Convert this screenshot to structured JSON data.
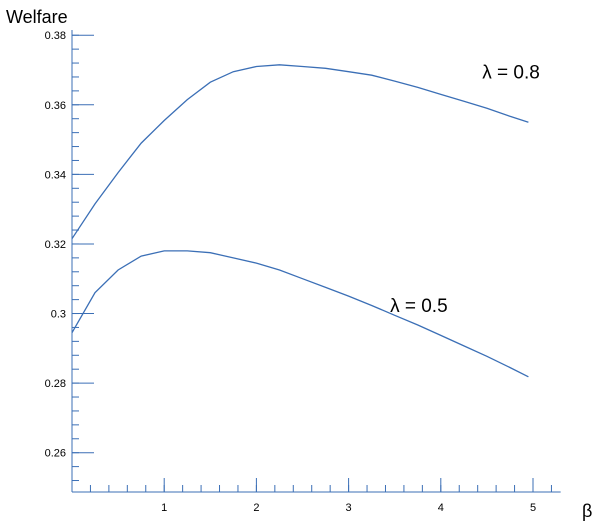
{
  "chart_data": {
    "type": "line",
    "ylabel": "Welfare",
    "xlabel": "β",
    "xlim": [
      0,
      5.3
    ],
    "ylim": [
      0.2487,
      0.3815
    ],
    "x_ticks": [
      1,
      2,
      3,
      4,
      5
    ],
    "y_ticks": [
      0.26,
      0.28,
      0.3,
      0.32,
      0.34,
      0.36,
      0.38
    ],
    "y_tick_labels": [
      "0.26",
      "0.28",
      "0.3",
      "0.32",
      "0.34",
      "0.36",
      "0.38"
    ],
    "grid": false,
    "colors": {
      "axis": "#3b6fb6",
      "series": "#3b6fb6"
    },
    "series": [
      {
        "name": "λ = 0.8",
        "x": [
          0,
          0.25,
          0.5,
          0.75,
          1.0,
          1.25,
          1.5,
          1.75,
          2.0,
          2.25,
          2.5,
          2.75,
          3.0,
          3.25,
          3.5,
          3.75,
          4.0,
          4.25,
          4.5,
          4.75,
          4.95
        ],
        "y": [
          0.3215,
          0.3315,
          0.3405,
          0.349,
          0.3555,
          0.3615,
          0.3665,
          0.3695,
          0.371,
          0.3715,
          0.371,
          0.3705,
          0.3695,
          0.3685,
          0.3668,
          0.365,
          0.363,
          0.361,
          0.359,
          0.3567,
          0.355
        ]
      },
      {
        "name": "λ = 0.5",
        "x": [
          0,
          0.25,
          0.5,
          0.75,
          1.0,
          1.25,
          1.5,
          1.75,
          2.0,
          2.25,
          2.5,
          2.75,
          3.0,
          3.25,
          3.5,
          3.75,
          4.0,
          4.25,
          4.5,
          4.75,
          4.95
        ],
        "y": [
          0.2945,
          0.306,
          0.3125,
          0.3165,
          0.318,
          0.318,
          0.3175,
          0.316,
          0.3145,
          0.3125,
          0.31,
          0.3075,
          0.305,
          0.3023,
          0.2995,
          0.2967,
          0.2937,
          0.2907,
          0.2877,
          0.2845,
          0.2818
        ]
      }
    ],
    "series_label_anchor": [
      {
        "x": 4.45,
        "y": 0.3675
      },
      {
        "x": 3.45,
        "y": 0.3005
      }
    ]
  }
}
